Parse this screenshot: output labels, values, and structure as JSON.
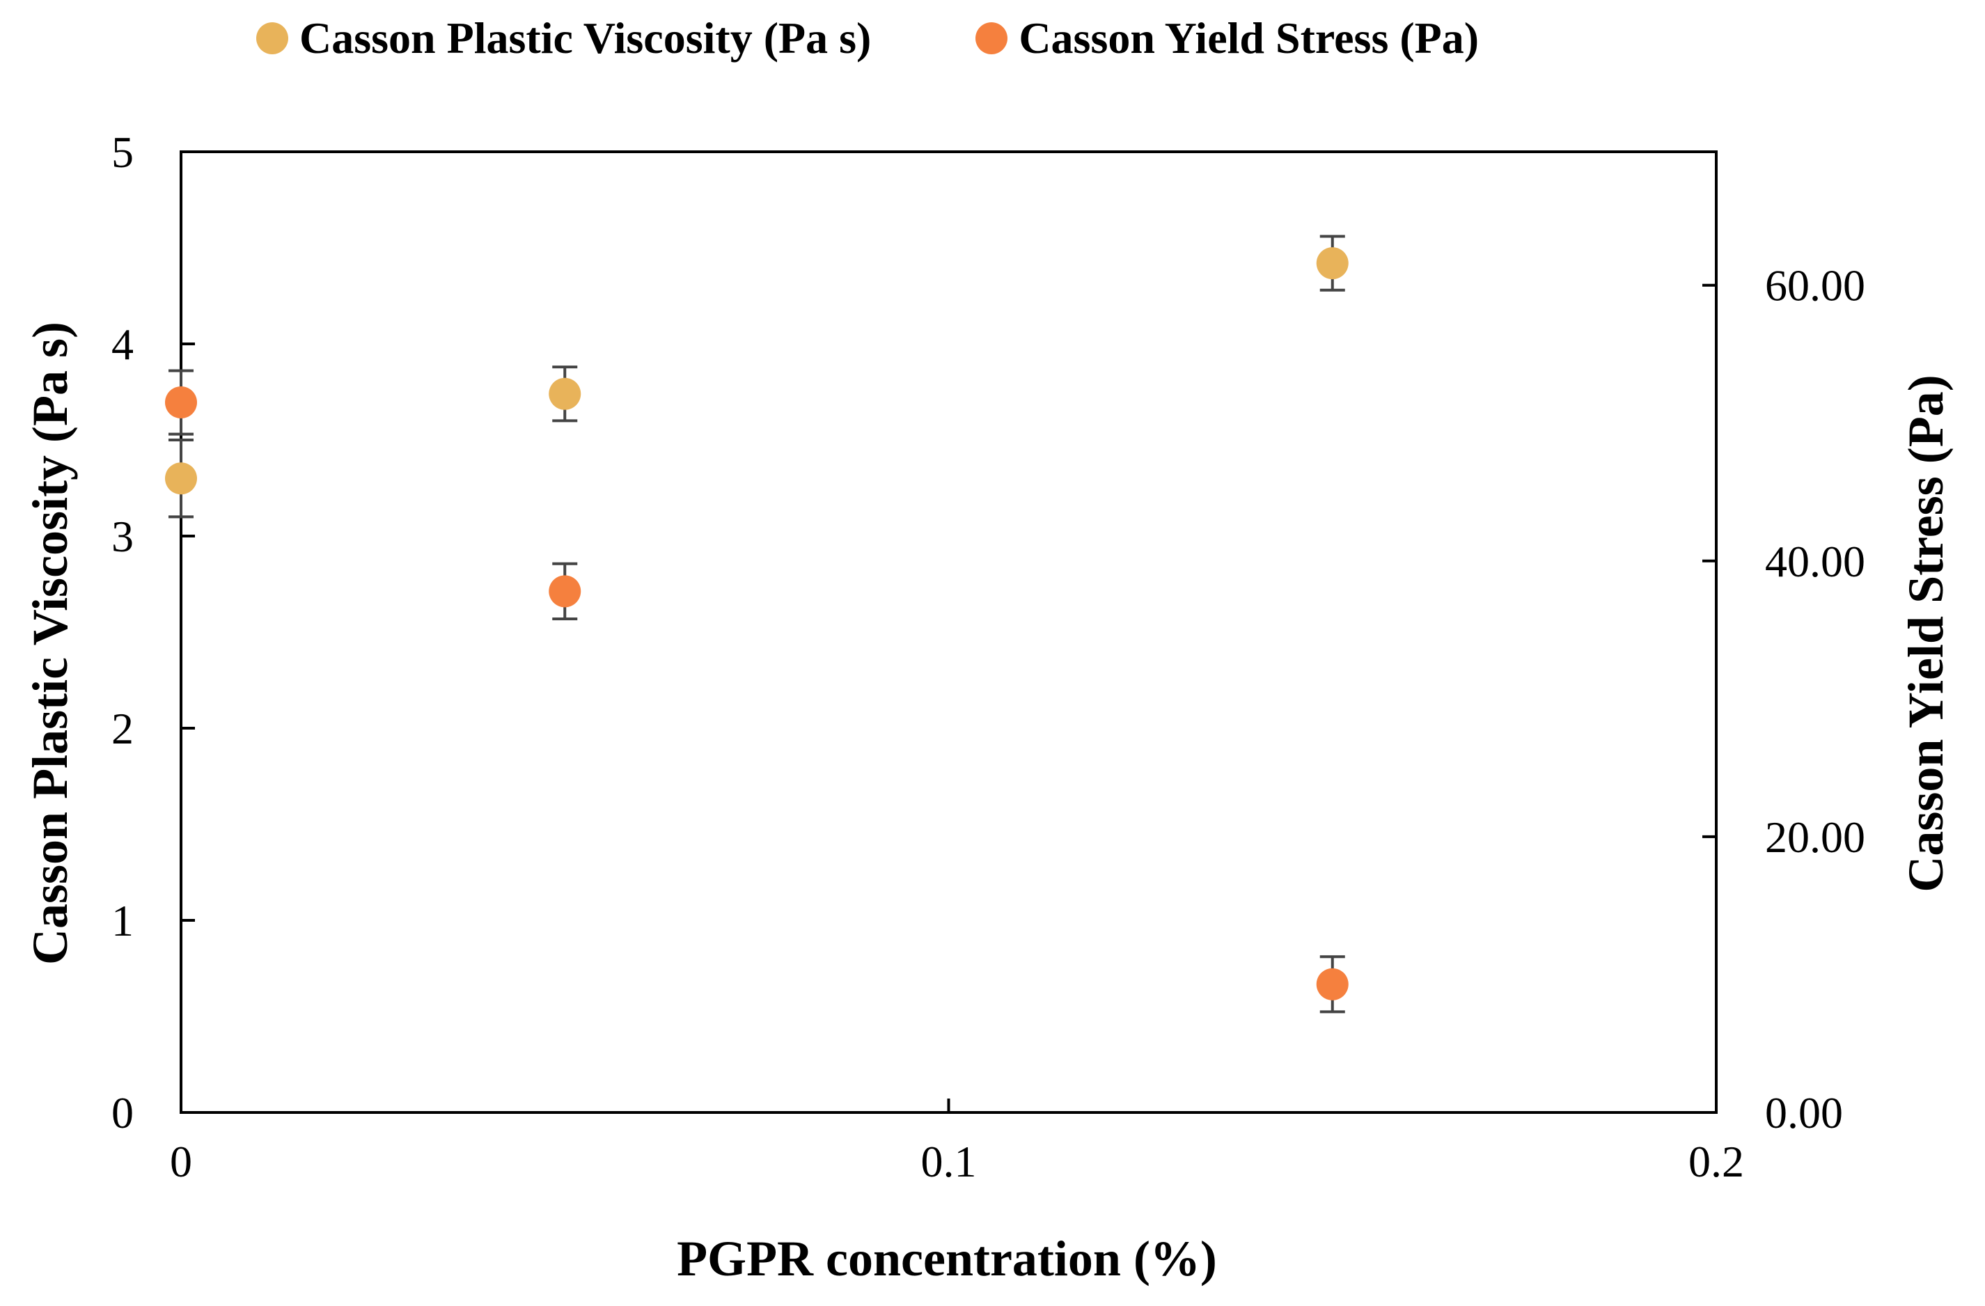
{
  "chart_data": {
    "type": "scatter",
    "title": "",
    "xlabel": "PGPR concentration (%)",
    "ylabel": "Casson Plastic Viscosity (Pa s)",
    "y2label": "Casson Yield Stress (Pa)",
    "xlim": [
      0,
      0.2
    ],
    "ylim": [
      0,
      5
    ],
    "y2lim": [
      0,
      69.68
    ],
    "x_ticks": [
      0,
      0.1,
      0.2
    ],
    "x_tick_labels": [
      "0",
      "0.1",
      "0.2"
    ],
    "y_ticks": [
      0,
      1,
      2,
      3,
      4,
      5
    ],
    "y_tick_labels": [
      "0",
      "1",
      "2",
      "3",
      "4",
      "5"
    ],
    "y2_ticks": [
      0,
      20,
      40,
      60
    ],
    "y2_tick_labels": [
      "0.00",
      "20.00",
      "40.00",
      "60.00"
    ],
    "grid": false,
    "legend_position": "top",
    "series": [
      {
        "name": "Casson Plastic Viscosity (Pa s)",
        "axis": "left",
        "color": "#E8B35A",
        "x": [
          0,
          0.05,
          0.15
        ],
        "values": [
          3.3,
          3.74,
          4.42
        ],
        "errors": [
          0.2,
          0.14,
          0.14
        ]
      },
      {
        "name": "Casson Yield Stress (Pa)",
        "axis": "right",
        "color": "#F5803E",
        "x": [
          0,
          0.05,
          0.15
        ],
        "values": [
          51.5,
          37.8,
          9.3
        ],
        "errors": [
          2.3,
          2.0,
          2.0
        ]
      }
    ]
  }
}
